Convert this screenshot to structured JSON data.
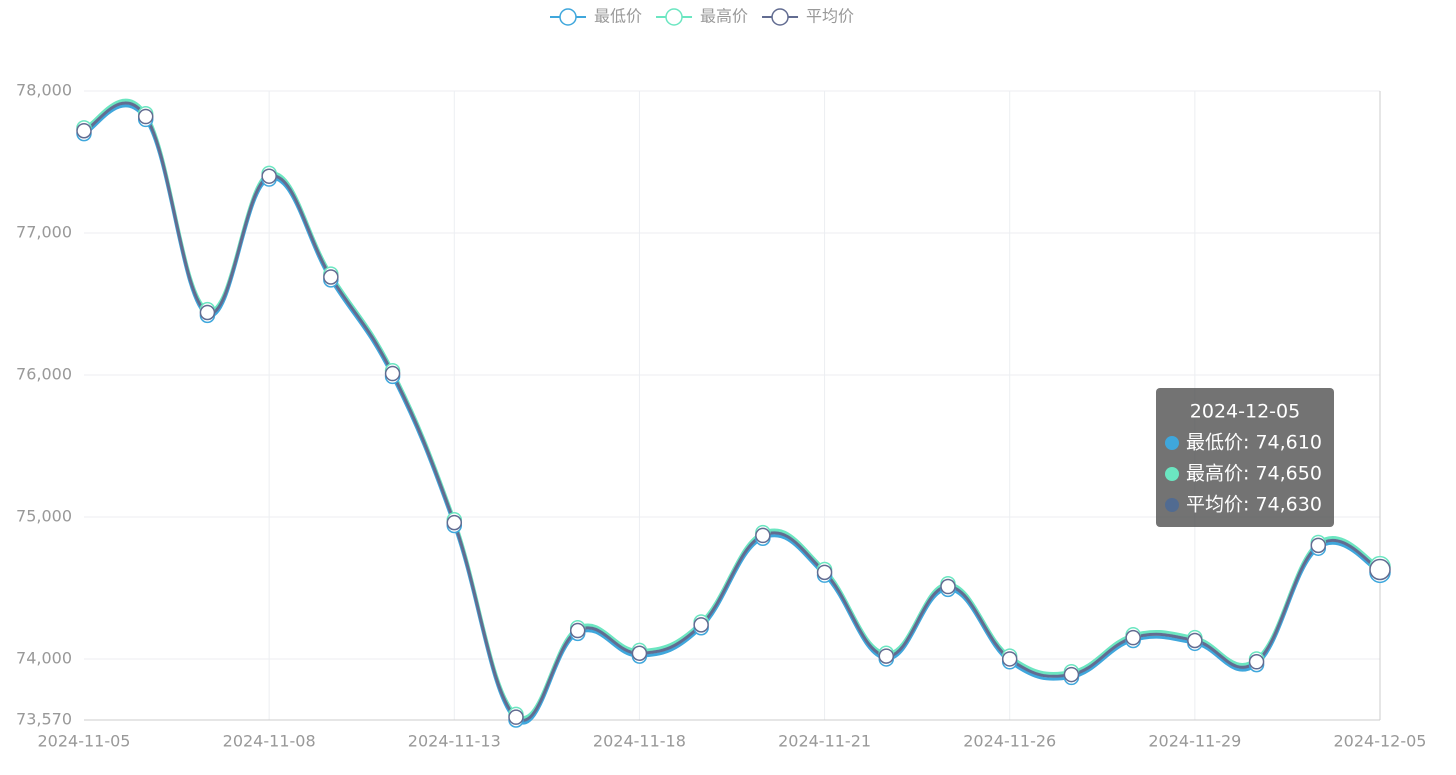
{
  "chart_data": {
    "type": "line",
    "categories": [
      "2024-11-05",
      null,
      null,
      "2024-11-08",
      null,
      null,
      "2024-11-13",
      null,
      null,
      "2024-11-18",
      null,
      null,
      "2024-11-21",
      null,
      null,
      "2024-11-26",
      null,
      null,
      "2024-11-29",
      null,
      null,
      "2024-12-05"
    ],
    "series": [
      {
        "name": "最低价",
        "color": "#3fa7dc",
        "values": [
          77700,
          77800,
          76420,
          77380,
          76670,
          75990,
          74940,
          73570,
          74180,
          74020,
          74220,
          74850,
          74590,
          74000,
          74490,
          73980,
          73870,
          74130,
          74110,
          73960,
          74780,
          74610
        ]
      },
      {
        "name": "最高价",
        "color": "#6be6c1",
        "values": [
          77740,
          77840,
          76460,
          77420,
          76710,
          76030,
          74980,
          73610,
          74220,
          74060,
          74260,
          74890,
          74630,
          74040,
          74530,
          74020,
          73910,
          74170,
          74150,
          74000,
          74820,
          74650
        ]
      },
      {
        "name": "平均价",
        "color": "#626c91",
        "values": [
          77720,
          77820,
          76440,
          77400,
          76690,
          76010,
          74960,
          73590,
          74200,
          74040,
          74240,
          74870,
          74610,
          74020,
          74510,
          74000,
          73890,
          74150,
          74130,
          73980,
          74800,
          74630
        ]
      }
    ],
    "ylim": [
      73570,
      78000
    ],
    "yticks": [
      {
        "value": 73570,
        "label": "73,570"
      },
      {
        "value": 74000,
        "label": "74,000"
      },
      {
        "value": 75000,
        "label": "75,000"
      },
      {
        "value": 76000,
        "label": "76,000"
      },
      {
        "value": 77000,
        "label": "77,000"
      },
      {
        "value": 78000,
        "label": "78,000"
      }
    ],
    "grid": true,
    "legend": "top",
    "tooltip": {
      "title": "2024-12-05",
      "lines": [
        "最低价: 74,610",
        "最高价: 74,650",
        "平均价: 74,630"
      ]
    }
  }
}
